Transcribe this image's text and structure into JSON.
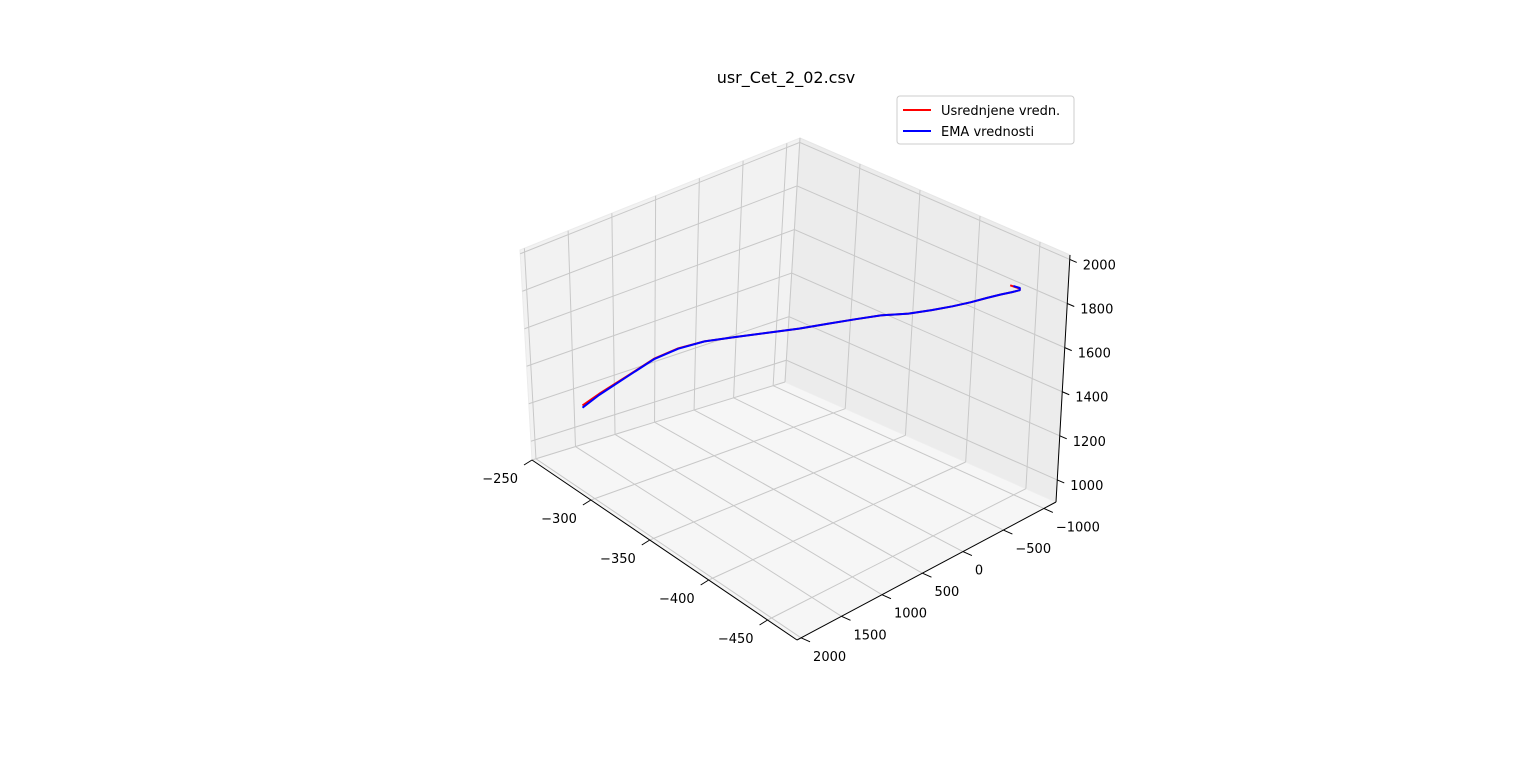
{
  "chart_data": {
    "type": "line",
    "projection": "3d",
    "title": "usr_Cet_2_02.csv",
    "legend_position": "top-right",
    "grid": true,
    "axes": {
      "x": {
        "ticks": [
          "−250",
          "−300",
          "−350",
          "−400",
          "−450"
        ],
        "tick_values": [
          -250,
          -300,
          -350,
          -400,
          -450
        ],
        "label": ""
      },
      "y": {
        "ticks": [
          "−1000",
          "−500",
          "0",
          "500",
          "1000",
          "1500",
          "2000"
        ],
        "tick_values": [
          -1000,
          -500,
          0,
          500,
          1000,
          1500,
          2000
        ],
        "label": ""
      },
      "z": {
        "ticks": [
          "1000",
          "1200",
          "1400",
          "1600",
          "1800",
          "2000"
        ],
        "tick_values": [
          1000,
          1200,
          1400,
          1600,
          1800,
          2000
        ],
        "label": ""
      }
    },
    "series": [
      {
        "name": "Usrednjene vredn.",
        "color": "#ff0000",
        "points": [
          [
            -264,
            1620,
            1150
          ],
          [
            -270,
            1500,
            1210
          ],
          [
            -280,
            1300,
            1300
          ],
          [
            -290,
            1100,
            1390
          ],
          [
            -300,
            950,
            1450
          ],
          [
            -312,
            800,
            1500
          ],
          [
            -328,
            650,
            1550
          ],
          [
            -345,
            500,
            1600
          ],
          [
            -362,
            360,
            1650
          ],
          [
            -378,
            230,
            1700
          ],
          [
            -392,
            100,
            1740
          ],
          [
            -405,
            -20,
            1775
          ],
          [
            -420,
            -140,
            1805
          ],
          [
            -432,
            -250,
            1835
          ],
          [
            -442,
            -360,
            1860
          ],
          [
            -450,
            -470,
            1880
          ],
          [
            -456,
            -580,
            1895
          ],
          [
            -460,
            -690,
            1900
          ],
          [
            -462,
            -800,
            1895
          ],
          [
            -461,
            -910,
            1880
          ],
          [
            -455,
            -1000,
            1855
          ],
          [
            -445,
            -1030,
            1840
          ]
        ]
      },
      {
        "name": "EMA vrednosti",
        "color": "#0000ff",
        "points": [
          [
            -264,
            1620,
            1140
          ],
          [
            -270,
            1500,
            1205
          ],
          [
            -280,
            1300,
            1298
          ],
          [
            -290,
            1100,
            1388
          ],
          [
            -300,
            950,
            1448
          ],
          [
            -312,
            800,
            1500
          ],
          [
            -328,
            650,
            1550
          ],
          [
            -345,
            500,
            1600
          ],
          [
            -362,
            360,
            1650
          ],
          [
            -378,
            230,
            1700
          ],
          [
            -392,
            100,
            1740
          ],
          [
            -405,
            -20,
            1775
          ],
          [
            -420,
            -140,
            1805
          ],
          [
            -432,
            -250,
            1835
          ],
          [
            -442,
            -360,
            1860
          ],
          [
            -450,
            -470,
            1880
          ],
          [
            -456,
            -580,
            1895
          ],
          [
            -460,
            -690,
            1900
          ],
          [
            -462,
            -800,
            1895
          ],
          [
            -461,
            -910,
            1880
          ],
          [
            -455,
            -1000,
            1858
          ],
          [
            -448,
            -1025,
            1845
          ]
        ]
      }
    ]
  }
}
